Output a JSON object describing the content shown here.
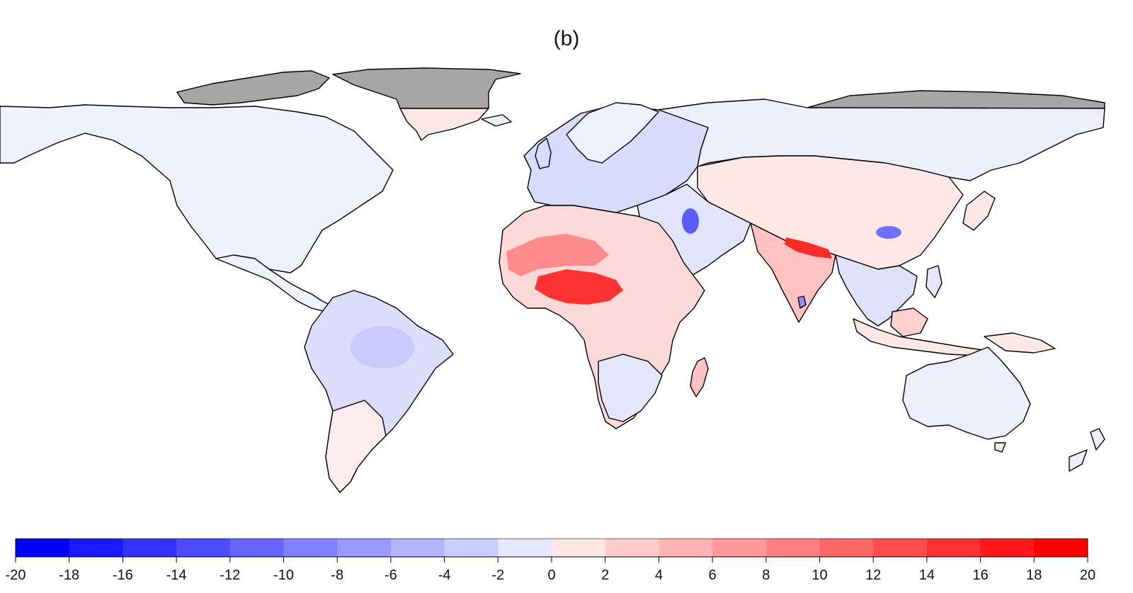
{
  "figure": {
    "panel_label": "(b)",
    "description_type": "choropleth world map with diverging colorbar"
  },
  "colors": {
    "ocean": "#ffffff",
    "no_data": "#a6a6a6",
    "land_neutral": "#eef0fb",
    "border": "#000000"
  },
  "chart_data": {
    "type": "heatmap",
    "title": "(b)",
    "colorbar": {
      "min": -20,
      "max": 20,
      "step": 2,
      "tick_labels": [
        "-20",
        "-18",
        "-16",
        "-14",
        "-12",
        "-10",
        "-8",
        "-6",
        "-4",
        "-2",
        "0",
        "2",
        "4",
        "6",
        "8",
        "10",
        "12",
        "14",
        "16",
        "18",
        "20"
      ],
      "bins": [
        {
          "from": -20,
          "to": -18,
          "color": "#0000ff"
        },
        {
          "from": -18,
          "to": -16,
          "color": "#1a1aff"
        },
        {
          "from": -16,
          "to": -14,
          "color": "#3333ff"
        },
        {
          "from": -14,
          "to": -12,
          "color": "#4d4dff"
        },
        {
          "from": -12,
          "to": -10,
          "color": "#6666ff"
        },
        {
          "from": -10,
          "to": -8,
          "color": "#8080ff"
        },
        {
          "from": -8,
          "to": -6,
          "color": "#9999ff"
        },
        {
          "from": -6,
          "to": -4,
          "color": "#b3b3ff"
        },
        {
          "from": -4,
          "to": -2,
          "color": "#ccccff"
        },
        {
          "from": -2,
          "to": 0,
          "color": "#e6e6ff"
        },
        {
          "from": 0,
          "to": 2,
          "color": "#ffe6e6"
        },
        {
          "from": 2,
          "to": 4,
          "color": "#ffcccc"
        },
        {
          "from": 4,
          "to": 6,
          "color": "#ffb3b3"
        },
        {
          "from": 6,
          "to": 8,
          "color": "#ff9999"
        },
        {
          "from": 8,
          "to": 10,
          "color": "#ff8080"
        },
        {
          "from": 10,
          "to": 12,
          "color": "#ff6666"
        },
        {
          "from": 12,
          "to": 14,
          "color": "#ff4d4d"
        },
        {
          "from": 14,
          "to": 16,
          "color": "#ff3333"
        },
        {
          "from": 16,
          "to": 18,
          "color": "#ff1a1a"
        },
        {
          "from": 18,
          "to": 20,
          "color": "#ff0000"
        }
      ]
    }
  }
}
